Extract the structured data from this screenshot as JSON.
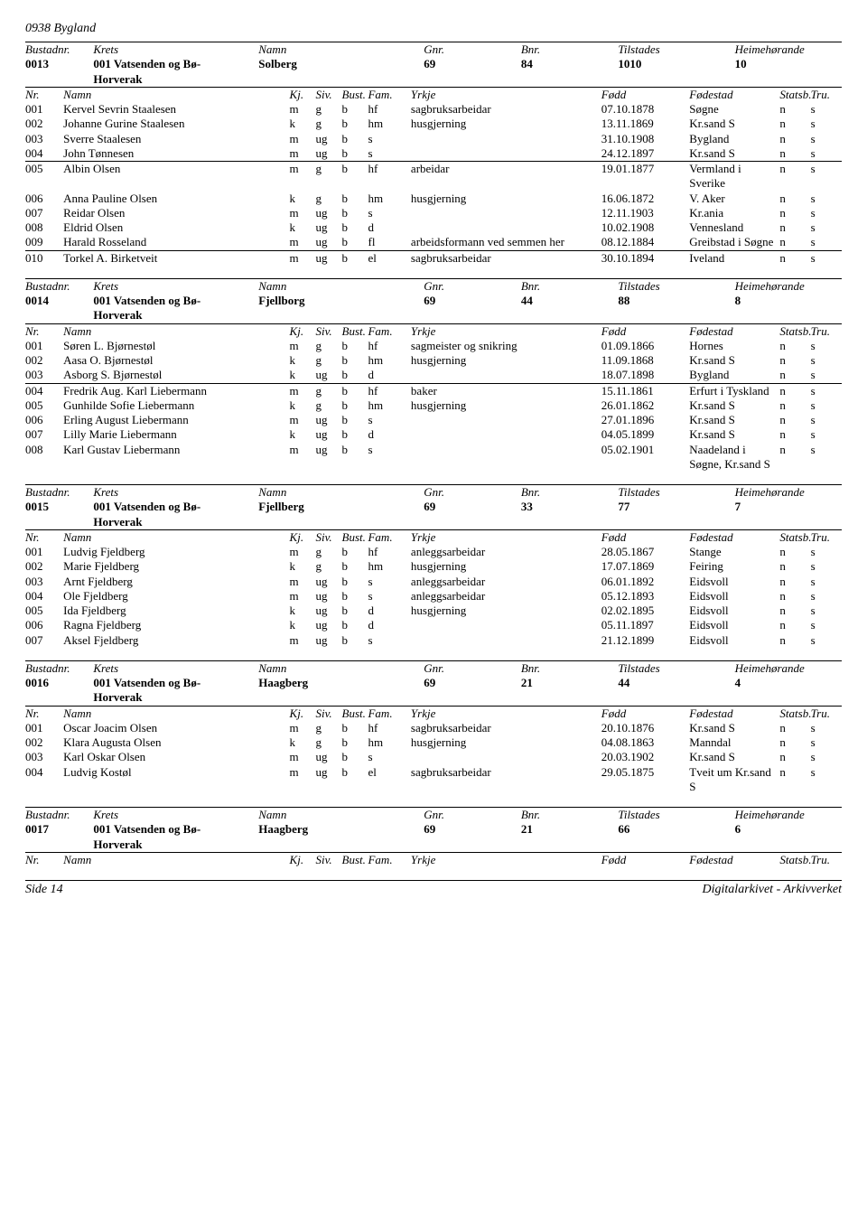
{
  "page_header": "0938 Bygland",
  "footer_left": "Side 14",
  "footer_right": "Digitalarkivet - Arkivverket",
  "bustad_header_labels": {
    "nr": "Bustadnr.",
    "krets": "Krets",
    "namn": "Namn",
    "gnr": "Gnr.",
    "bnr": "Bnr.",
    "tilstades": "Tilstades",
    "heime": "Heimehørande"
  },
  "person_header_labels": {
    "nr": "Nr.",
    "namn": "Namn",
    "kj": "Kj.",
    "siv": "Siv.",
    "bust": "Bust.",
    "fam": "Fam.",
    "yrkje": "Yrkje",
    "fodd": "Fødd",
    "fodestad": "Fødestad",
    "statsb": "Statsb.",
    "tru": "Tru."
  },
  "bustads": [
    {
      "id": "0013",
      "krets": "001 Vatsenden og Bø-Horverak",
      "namn": "Solberg",
      "gnr": "69",
      "bnr": "84",
      "tilstades": "1010",
      "heime": "10",
      "persons": [
        {
          "nr": "001",
          "namn": "Kervel Sevrin Staalesen",
          "kj": "m",
          "siv": "g",
          "bust": "b",
          "fam": "hf",
          "yrkje": "sagbruksarbeidar",
          "fodd": "07.10.1878",
          "fsted": "Søgne",
          "statsb": "n",
          "tru": "s"
        },
        {
          "nr": "002",
          "namn": "Johanne Gurine Staalesen",
          "kj": "k",
          "siv": "g",
          "bust": "b",
          "fam": "hm",
          "yrkje": "husgjerning",
          "fodd": "13.11.1869",
          "fsted": "Kr.sand S",
          "statsb": "n",
          "tru": "s"
        },
        {
          "nr": "003",
          "namn": "Sverre Staalesen",
          "kj": "m",
          "siv": "ug",
          "bust": "b",
          "fam": "s",
          "yrkje": "",
          "fodd": "31.10.1908",
          "fsted": "Bygland",
          "statsb": "n",
          "tru": "s"
        },
        {
          "nr": "004",
          "namn": "John Tønnesen",
          "kj": "m",
          "siv": "ug",
          "bust": "b",
          "fam": "s",
          "yrkje": "",
          "fodd": "24.12.1897",
          "fsted": "Kr.sand S",
          "statsb": "n",
          "tru": "s",
          "thinline": true
        },
        {
          "nr": "005",
          "namn": "Albin Olsen",
          "kj": "m",
          "siv": "g",
          "bust": "b",
          "fam": "hf",
          "yrkje": "arbeidar",
          "fodd": "19.01.1877",
          "fsted": "Vermland i Sverike",
          "statsb": "n",
          "tru": "s"
        },
        {
          "nr": "006",
          "namn": "Anna Pauline Olsen",
          "kj": "k",
          "siv": "g",
          "bust": "b",
          "fam": "hm",
          "yrkje": "husgjerning",
          "fodd": "16.06.1872",
          "fsted": "V. Aker",
          "statsb": "n",
          "tru": "s"
        },
        {
          "nr": "007",
          "namn": "Reidar Olsen",
          "kj": "m",
          "siv": "ug",
          "bust": "b",
          "fam": "s",
          "yrkje": "",
          "fodd": "12.11.1903",
          "fsted": "Kr.ania",
          "statsb": "n",
          "tru": "s"
        },
        {
          "nr": "008",
          "namn": "Eldrid Olsen",
          "kj": "k",
          "siv": "ug",
          "bust": "b",
          "fam": "d",
          "yrkje": "",
          "fodd": "10.02.1908",
          "fsted": "Vennesland",
          "statsb": "n",
          "tru": "s"
        },
        {
          "nr": "009",
          "namn": "Harald Rosseland",
          "kj": "m",
          "siv": "ug",
          "bust": "b",
          "fam": "fl",
          "yrkje": "arbeidsformann ved semmen her",
          "fodd": "08.12.1884",
          "fsted": "Greibstad i Søgne",
          "statsb": "n",
          "tru": "s",
          "thinline": true
        },
        {
          "nr": "010",
          "namn": "Torkel A. Birketveit",
          "kj": "m",
          "siv": "ug",
          "bust": "b",
          "fam": "el",
          "yrkje": "sagbruksarbeidar",
          "fodd": "30.10.1894",
          "fsted": "Iveland",
          "statsb": "n",
          "tru": "s"
        }
      ]
    },
    {
      "id": "0014",
      "krets": "001 Vatsenden og Bø-Horverak",
      "namn": "Fjellborg",
      "gnr": "69",
      "bnr": "44",
      "tilstades": "88",
      "heime": "8",
      "persons": [
        {
          "nr": "001",
          "namn": "Søren L. Bjørnestøl",
          "kj": "m",
          "siv": "g",
          "bust": "b",
          "fam": "hf",
          "yrkje": "sagmeister og snikring",
          "fodd": "01.09.1866",
          "fsted": "Hornes",
          "statsb": "n",
          "tru": "s"
        },
        {
          "nr": "002",
          "namn": "Aasa O. Bjørnestøl",
          "kj": "k",
          "siv": "g",
          "bust": "b",
          "fam": "hm",
          "yrkje": "husgjerning",
          "fodd": "11.09.1868",
          "fsted": "Kr.sand S",
          "statsb": "n",
          "tru": "s"
        },
        {
          "nr": "003",
          "namn": "Asborg S. Bjørnestøl",
          "kj": "k",
          "siv": "ug",
          "bust": "b",
          "fam": "d",
          "yrkje": "",
          "fodd": "18.07.1898",
          "fsted": "Bygland",
          "statsb": "n",
          "tru": "s",
          "thinline": true
        },
        {
          "nr": "004",
          "namn": "Fredrik Aug. Karl Liebermann",
          "kj": "m",
          "siv": "g",
          "bust": "b",
          "fam": "hf",
          "yrkje": "baker",
          "fodd": "15.11.1861",
          "fsted": "Erfurt i Tyskland",
          "statsb": "n",
          "tru": "s"
        },
        {
          "nr": "005",
          "namn": "Gunhilde Sofie Liebermann",
          "kj": "k",
          "siv": "g",
          "bust": "b",
          "fam": "hm",
          "yrkje": "husgjerning",
          "fodd": "26.01.1862",
          "fsted": "Kr.sand S",
          "statsb": "n",
          "tru": "s"
        },
        {
          "nr": "006",
          "namn": "Erling August Liebermann",
          "kj": "m",
          "siv": "ug",
          "bust": "b",
          "fam": "s",
          "yrkje": "",
          "fodd": "27.01.1896",
          "fsted": "Kr.sand S",
          "statsb": "n",
          "tru": "s"
        },
        {
          "nr": "007",
          "namn": "Lilly Marie Liebermann",
          "kj": "k",
          "siv": "ug",
          "bust": "b",
          "fam": "d",
          "yrkje": "",
          "fodd": "04.05.1899",
          "fsted": "Kr.sand S",
          "statsb": "n",
          "tru": "s"
        },
        {
          "nr": "008",
          "namn": "Karl Gustav Liebermann",
          "kj": "m",
          "siv": "ug",
          "bust": "b",
          "fam": "s",
          "yrkje": "",
          "fodd": "05.02.1901",
          "fsted": "Naadeland i Søgne, Kr.sand S",
          "statsb": "n",
          "tru": "s"
        }
      ]
    },
    {
      "id": "0015",
      "krets": "001 Vatsenden og Bø-Horverak",
      "namn": "Fjellberg",
      "gnr": "69",
      "bnr": "33",
      "tilstades": "77",
      "heime": "7",
      "persons": [
        {
          "nr": "001",
          "namn": "Ludvig Fjeldberg",
          "kj": "m",
          "siv": "g",
          "bust": "b",
          "fam": "hf",
          "yrkje": "anleggsarbeidar",
          "fodd": "28.05.1867",
          "fsted": "Stange",
          "statsb": "n",
          "tru": "s"
        },
        {
          "nr": "002",
          "namn": "Marie Fjeldberg",
          "kj": "k",
          "siv": "g",
          "bust": "b",
          "fam": "hm",
          "yrkje": "husgjerning",
          "fodd": "17.07.1869",
          "fsted": "Feiring",
          "statsb": "n",
          "tru": "s"
        },
        {
          "nr": "003",
          "namn": "Arnt Fjeldberg",
          "kj": "m",
          "siv": "ug",
          "bust": "b",
          "fam": "s",
          "yrkje": "anleggsarbeidar",
          "fodd": "06.01.1892",
          "fsted": "Eidsvoll",
          "statsb": "n",
          "tru": "s"
        },
        {
          "nr": "004",
          "namn": "Ole Fjeldberg",
          "kj": "m",
          "siv": "ug",
          "bust": "b",
          "fam": "s",
          "yrkje": "anleggsarbeidar",
          "fodd": "05.12.1893",
          "fsted": "Eidsvoll",
          "statsb": "n",
          "tru": "s"
        },
        {
          "nr": "005",
          "namn": "Ida Fjeldberg",
          "kj": "k",
          "siv": "ug",
          "bust": "b",
          "fam": "d",
          "yrkje": "husgjerning",
          "fodd": "02.02.1895",
          "fsted": "Eidsvoll",
          "statsb": "n",
          "tru": "s"
        },
        {
          "nr": "006",
          "namn": "Ragna Fjeldberg",
          "kj": "k",
          "siv": "ug",
          "bust": "b",
          "fam": "d",
          "yrkje": "",
          "fodd": "05.11.1897",
          "fsted": "Eidsvoll",
          "statsb": "n",
          "tru": "s"
        },
        {
          "nr": "007",
          "namn": "Aksel Fjeldberg",
          "kj": "m",
          "siv": "ug",
          "bust": "b",
          "fam": "s",
          "yrkje": "",
          "fodd": "21.12.1899",
          "fsted": "Eidsvoll",
          "statsb": "n",
          "tru": "s"
        }
      ]
    },
    {
      "id": "0016",
      "krets": "001 Vatsenden og Bø-Horverak",
      "namn": "Haagberg",
      "gnr": "69",
      "bnr": "21",
      "tilstades": "44",
      "heime": "4",
      "persons": [
        {
          "nr": "001",
          "namn": "Oscar Joacim Olsen",
          "kj": "m",
          "siv": "g",
          "bust": "b",
          "fam": "hf",
          "yrkje": "sagbruksarbeidar",
          "fodd": "20.10.1876",
          "fsted": "Kr.sand S",
          "statsb": "n",
          "tru": "s"
        },
        {
          "nr": "002",
          "namn": "Klara Augusta Olsen",
          "kj": "k",
          "siv": "g",
          "bust": "b",
          "fam": "hm",
          "yrkje": "husgjerning",
          "fodd": "04.08.1863",
          "fsted": "Manndal",
          "statsb": "n",
          "tru": "s"
        },
        {
          "nr": "003",
          "namn": "Karl Oskar Olsen",
          "kj": "m",
          "siv": "ug",
          "bust": "b",
          "fam": "s",
          "yrkje": "",
          "fodd": "20.03.1902",
          "fsted": "Kr.sand S",
          "statsb": "n",
          "tru": "s"
        },
        {
          "nr": "004",
          "namn": "Ludvig Kostøl",
          "kj": "m",
          "siv": "ug",
          "bust": "b",
          "fam": "el",
          "yrkje": "sagbruksarbeidar",
          "fodd": "29.05.1875",
          "fsted": "Tveit um Kr.sand S",
          "statsb": "n",
          "tru": "s"
        }
      ]
    },
    {
      "id": "0017",
      "krets": "001 Vatsenden og Bø-Horverak",
      "namn": "Haagberg",
      "gnr": "69",
      "bnr": "21",
      "tilstades": "66",
      "heime": "6",
      "persons": []
    }
  ]
}
